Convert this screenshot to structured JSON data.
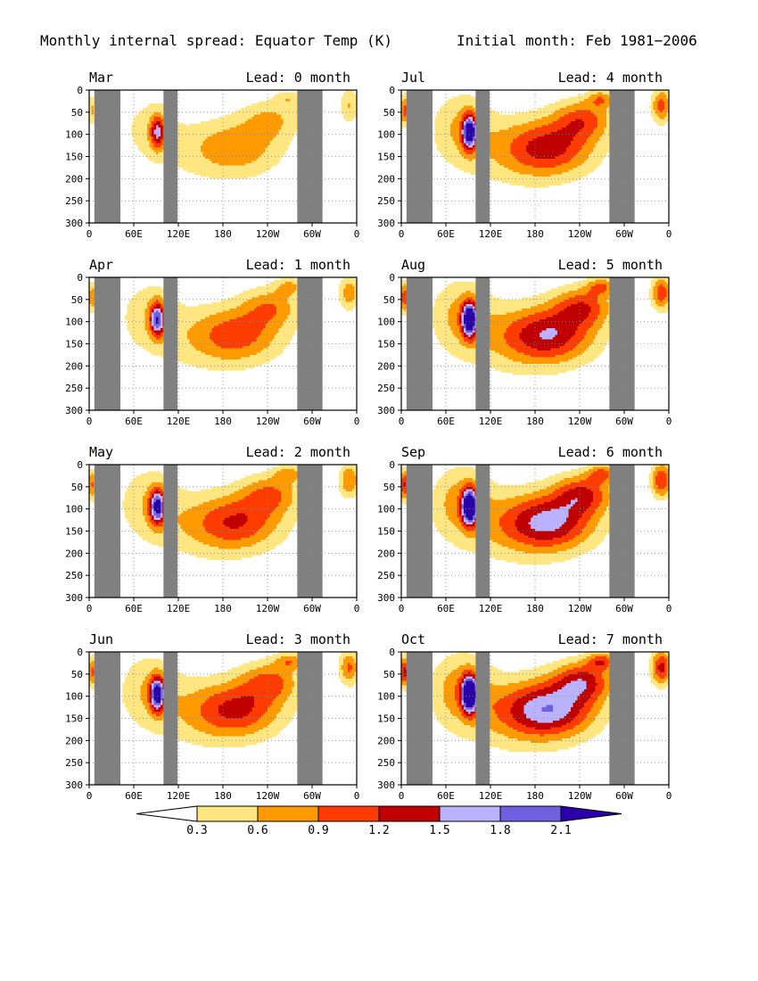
{
  "title_left": "Monthly internal spread: Equator Temp (K)",
  "title_right": "Initial month: Feb 1981−2006",
  "lead_prefix": "Lead:",
  "lead_unit": "month",
  "chart_data": {
    "type": "heatmap",
    "variable": "Equator Temp (K)",
    "initial_month": "Feb 1981−2006",
    "x_tick_labels": [
      "0",
      "60E",
      "120E",
      "180",
      "120W",
      "60W",
      "0"
    ],
    "x_ticks_deg": [
      0,
      60,
      120,
      180,
      240,
      300,
      360
    ],
    "y_tick_labels": [
      "0",
      "50",
      "100",
      "150",
      "200",
      "250",
      "300"
    ],
    "y_ticks": [
      0,
      50,
      100,
      150,
      200,
      250,
      300
    ],
    "xlim": [
      0,
      360
    ],
    "ylim": [
      300,
      0
    ],
    "grid": true,
    "land_mask_lon": [
      [
        7,
        42
      ],
      [
        100,
        119
      ],
      [
        280,
        314
      ]
    ],
    "colorbar": {
      "levels": [
        "0.3",
        "0.6",
        "0.9",
        "1.2",
        "1.5",
        "1.8",
        "2.1"
      ],
      "colors": [
        "#ffffff",
        "#ffe680",
        "#ff9b00",
        "#ff3c00",
        "#c00000",
        "#bbb2ff",
        "#7060e0",
        "#2a00a8"
      ],
      "extend": "both"
    },
    "panels": [
      {
        "month": "Mar",
        "lead": 0,
        "level_scale": 0.62
      },
      {
        "month": "Jul",
        "lead": 4,
        "level_scale": 1.0
      },
      {
        "month": "Apr",
        "lead": 1,
        "level_scale": 0.8
      },
      {
        "month": "Aug",
        "lead": 5,
        "level_scale": 1.1
      },
      {
        "month": "May",
        "lead": 2,
        "level_scale": 0.9
      },
      {
        "month": "Sep",
        "lead": 6,
        "level_scale": 1.2
      },
      {
        "month": "Jun",
        "lead": 3,
        "level_scale": 0.95
      },
      {
        "month": "Oct",
        "lead": 7,
        "level_scale": 1.3
      }
    ]
  }
}
